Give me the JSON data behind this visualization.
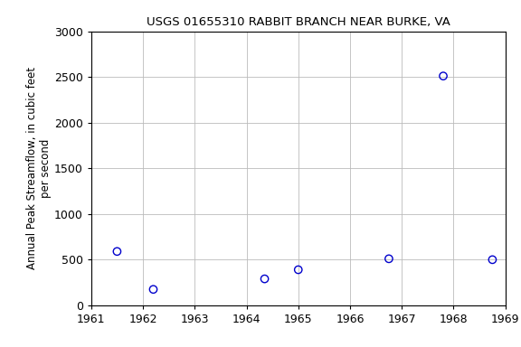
{
  "title": "USGS 01655310 RABBIT BRANCH NEAR BURKE, VA",
  "ylabel_line1": "Annual Peak Streamflow, in cubic feet",
  "ylabel_line2": "per second",
  "xlim": [
    1961,
    1969
  ],
  "ylim": [
    0,
    3000
  ],
  "xticks": [
    1961,
    1962,
    1963,
    1964,
    1965,
    1966,
    1967,
    1968,
    1969
  ],
  "yticks": [
    0,
    500,
    1000,
    1500,
    2000,
    2500,
    3000
  ],
  "years": [
    1961.5,
    1962.2,
    1964.35,
    1965.0,
    1966.75,
    1967.8,
    1968.75
  ],
  "flows": [
    590,
    175,
    290,
    390,
    510,
    2510,
    500
  ],
  "marker_color": "#0000cc",
  "marker_size": 6,
  "grid_color": "#bbbbbb",
  "bg_color": "#ffffff",
  "title_fontsize": 9.5,
  "label_fontsize": 8.5,
  "tick_fontsize": 9
}
